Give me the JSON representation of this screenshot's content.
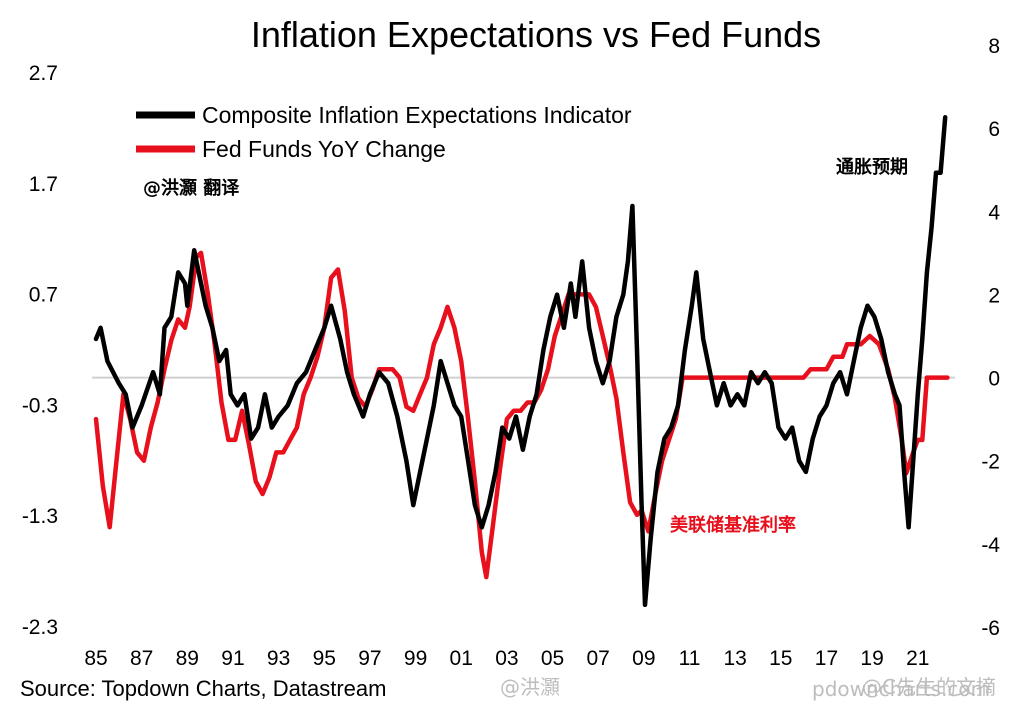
{
  "chart_data": {
    "type": "line",
    "title": "Inflation Expectations vs Fed Funds",
    "x_axis": {
      "range": [
        1985,
        2022.5
      ],
      "tick_values": [
        1985,
        1987,
        1989,
        1991,
        1993,
        1995,
        1997,
        1999,
        2001,
        2003,
        2005,
        2007,
        2009,
        2011,
        2013,
        2015,
        2017,
        2019,
        2021
      ],
      "tick_labels": [
        "85",
        "87",
        "89",
        "91",
        "93",
        "95",
        "97",
        "99",
        "01",
        "03",
        "05",
        "07",
        "09",
        "11",
        "13",
        "15",
        "17",
        "19",
        "21"
      ]
    },
    "y_left": {
      "range": [
        -2.3,
        2.7
      ],
      "ticks": [
        "2.7",
        "1.7",
        "0.7",
        "-0.3",
        "-1.3",
        "-2.3"
      ],
      "tick_values": [
        2.7,
        1.7,
        0.7,
        -0.3,
        -1.3,
        -2.3
      ]
    },
    "y_right": {
      "range": [
        -6,
        8
      ],
      "ticks": [
        "8",
        "6",
        "4",
        "2",
        "0",
        "-2",
        "-4",
        "-6"
      ],
      "tick_values": [
        8,
        6,
        4,
        2,
        0,
        -2,
        -4,
        -6
      ]
    },
    "series": [
      {
        "name": "Composite Inflation Expectations Indicator",
        "axis": "left",
        "color": "#000000",
        "points": [
          [
            1985.0,
            0.3
          ],
          [
            1985.2,
            0.4
          ],
          [
            1985.5,
            0.1
          ],
          [
            1986.0,
            -0.1
          ],
          [
            1986.3,
            -0.2
          ],
          [
            1986.6,
            -0.5
          ],
          [
            1987.0,
            -0.3
          ],
          [
            1987.5,
            0.0
          ],
          [
            1987.8,
            -0.2
          ],
          [
            1988.0,
            0.4
          ],
          [
            1988.3,
            0.5
          ],
          [
            1988.6,
            0.9
          ],
          [
            1988.9,
            0.8
          ],
          [
            1989.0,
            0.6
          ],
          [
            1989.3,
            1.1
          ],
          [
            1989.6,
            0.8
          ],
          [
            1989.8,
            0.6
          ],
          [
            1990.1,
            0.4
          ],
          [
            1990.4,
            0.1
          ],
          [
            1990.7,
            0.2
          ],
          [
            1990.9,
            -0.2
          ],
          [
            1991.2,
            -0.3
          ],
          [
            1991.5,
            -0.2
          ],
          [
            1991.8,
            -0.6
          ],
          [
            1992.1,
            -0.5
          ],
          [
            1992.4,
            -0.2
          ],
          [
            1992.7,
            -0.5
          ],
          [
            1993.0,
            -0.4
          ],
          [
            1993.4,
            -0.3
          ],
          [
            1993.8,
            -0.1
          ],
          [
            1994.2,
            0.0
          ],
          [
            1994.6,
            0.2
          ],
          [
            1995.0,
            0.4
          ],
          [
            1995.3,
            0.6
          ],
          [
            1995.7,
            0.3
          ],
          [
            1996.0,
            0.0
          ],
          [
            1996.3,
            -0.2
          ],
          [
            1996.7,
            -0.4
          ],
          [
            1997.0,
            -0.2
          ],
          [
            1997.4,
            0.0
          ],
          [
            1997.8,
            -0.1
          ],
          [
            1998.2,
            -0.4
          ],
          [
            1998.6,
            -0.8
          ],
          [
            1998.9,
            -1.2
          ],
          [
            1999.2,
            -0.9
          ],
          [
            1999.5,
            -0.6
          ],
          [
            1999.8,
            -0.3
          ],
          [
            2000.1,
            0.1
          ],
          [
            2000.4,
            -0.1
          ],
          [
            2000.7,
            -0.3
          ],
          [
            2001.0,
            -0.4
          ],
          [
            2001.3,
            -0.8
          ],
          [
            2001.6,
            -1.2
          ],
          [
            2001.9,
            -1.4
          ],
          [
            2002.2,
            -1.2
          ],
          [
            2002.5,
            -0.9
          ],
          [
            2002.8,
            -0.5
          ],
          [
            2003.1,
            -0.6
          ],
          [
            2003.4,
            -0.4
          ],
          [
            2003.7,
            -0.7
          ],
          [
            2004.0,
            -0.4
          ],
          [
            2004.3,
            -0.2
          ],
          [
            2004.6,
            0.2
          ],
          [
            2004.9,
            0.5
          ],
          [
            2005.2,
            0.7
          ],
          [
            2005.5,
            0.4
          ],
          [
            2005.8,
            0.8
          ],
          [
            2006.0,
            0.5
          ],
          [
            2006.3,
            1.0
          ],
          [
            2006.6,
            0.4
          ],
          [
            2006.9,
            0.1
          ],
          [
            2007.2,
            -0.1
          ],
          [
            2007.5,
            0.1
          ],
          [
            2007.8,
            0.5
          ],
          [
            2008.1,
            0.7
          ],
          [
            2008.3,
            1.0
          ],
          [
            2008.5,
            1.5
          ],
          [
            2008.7,
            0.2
          ],
          [
            2008.9,
            -1.2
          ],
          [
            2009.05,
            -2.1
          ],
          [
            2009.3,
            -1.5
          ],
          [
            2009.6,
            -0.9
          ],
          [
            2009.9,
            -0.6
          ],
          [
            2010.2,
            -0.5
          ],
          [
            2010.5,
            -0.3
          ],
          [
            2010.8,
            0.2
          ],
          [
            2011.1,
            0.6
          ],
          [
            2011.3,
            0.9
          ],
          [
            2011.6,
            0.3
          ],
          [
            2011.9,
            0.0
          ],
          [
            2012.2,
            -0.3
          ],
          [
            2012.5,
            -0.1
          ],
          [
            2012.8,
            -0.3
          ],
          [
            2013.1,
            -0.2
          ],
          [
            2013.4,
            -0.3
          ],
          [
            2013.7,
            0.0
          ],
          [
            2014.0,
            -0.1
          ],
          [
            2014.3,
            0.0
          ],
          [
            2014.6,
            -0.1
          ],
          [
            2014.9,
            -0.5
          ],
          [
            2015.2,
            -0.6
          ],
          [
            2015.5,
            -0.5
          ],
          [
            2015.8,
            -0.8
          ],
          [
            2016.1,
            -0.9
          ],
          [
            2016.4,
            -0.6
          ],
          [
            2016.7,
            -0.4
          ],
          [
            2017.0,
            -0.3
          ],
          [
            2017.3,
            -0.1
          ],
          [
            2017.6,
            0.0
          ],
          [
            2017.9,
            -0.2
          ],
          [
            2018.2,
            0.1
          ],
          [
            2018.5,
            0.4
          ],
          [
            2018.8,
            0.6
          ],
          [
            2019.1,
            0.5
          ],
          [
            2019.4,
            0.3
          ],
          [
            2019.7,
            0.0
          ],
          [
            2020.0,
            -0.2
          ],
          [
            2020.2,
            -0.3
          ],
          [
            2020.4,
            -0.9
          ],
          [
            2020.6,
            -1.4
          ],
          [
            2020.8,
            -0.8
          ],
          [
            2021.0,
            -0.2
          ],
          [
            2021.2,
            0.3
          ],
          [
            2021.4,
            0.9
          ],
          [
            2021.6,
            1.3
          ],
          [
            2021.8,
            1.8
          ],
          [
            2022.0,
            1.8
          ],
          [
            2022.2,
            2.3
          ]
        ]
      },
      {
        "name": "Fed Funds YoY Change",
        "axis": "right",
        "color": "#e8101c",
        "points": [
          [
            1985.0,
            -1.0
          ],
          [
            1985.3,
            -2.6
          ],
          [
            1985.6,
            -3.6
          ],
          [
            1985.9,
            -2.0
          ],
          [
            1986.2,
            -0.4
          ],
          [
            1986.5,
            -1.0
          ],
          [
            1986.8,
            -1.8
          ],
          [
            1987.1,
            -2.0
          ],
          [
            1987.4,
            -1.2
          ],
          [
            1987.7,
            -0.6
          ],
          [
            1988.0,
            0.2
          ],
          [
            1988.3,
            0.9
          ],
          [
            1988.6,
            1.4
          ],
          [
            1988.9,
            1.2
          ],
          [
            1989.1,
            1.7
          ],
          [
            1989.4,
            2.9
          ],
          [
            1989.6,
            3.0
          ],
          [
            1989.9,
            2.0
          ],
          [
            1990.2,
            0.8
          ],
          [
            1990.5,
            -0.6
          ],
          [
            1990.8,
            -1.5
          ],
          [
            1991.1,
            -1.5
          ],
          [
            1991.4,
            -0.8
          ],
          [
            1991.7,
            -1.6
          ],
          [
            1992.0,
            -2.5
          ],
          [
            1992.3,
            -2.8
          ],
          [
            1992.6,
            -2.4
          ],
          [
            1992.9,
            -1.8
          ],
          [
            1993.2,
            -1.8
          ],
          [
            1993.5,
            -1.5
          ],
          [
            1993.8,
            -1.2
          ],
          [
            1994.1,
            -0.4
          ],
          [
            1994.4,
            0.0
          ],
          [
            1994.7,
            0.5
          ],
          [
            1995.0,
            1.2
          ],
          [
            1995.3,
            2.4
          ],
          [
            1995.6,
            2.6
          ],
          [
            1995.9,
            1.6
          ],
          [
            1996.2,
            0.0
          ],
          [
            1996.5,
            -0.5
          ],
          [
            1996.8,
            -0.7
          ],
          [
            1997.1,
            -0.3
          ],
          [
            1997.4,
            0.2
          ],
          [
            1997.7,
            0.2
          ],
          [
            1998.0,
            0.2
          ],
          [
            1998.3,
            0.0
          ],
          [
            1998.6,
            -0.7
          ],
          [
            1998.9,
            -0.8
          ],
          [
            1999.2,
            -0.4
          ],
          [
            1999.5,
            0.0
          ],
          [
            1999.8,
            0.8
          ],
          [
            2000.1,
            1.2
          ],
          [
            2000.4,
            1.7
          ],
          [
            2000.7,
            1.2
          ],
          [
            2001.0,
            0.4
          ],
          [
            2001.3,
            -1.0
          ],
          [
            2001.6,
            -2.5
          ],
          [
            2001.9,
            -4.2
          ],
          [
            2002.1,
            -4.8
          ],
          [
            2002.4,
            -3.5
          ],
          [
            2002.7,
            -2.2
          ],
          [
            2003.0,
            -1.0
          ],
          [
            2003.3,
            -0.8
          ],
          [
            2003.6,
            -0.8
          ],
          [
            2003.9,
            -0.6
          ],
          [
            2004.2,
            -0.6
          ],
          [
            2004.5,
            -0.3
          ],
          [
            2004.8,
            0.2
          ],
          [
            2005.1,
            1.0
          ],
          [
            2005.4,
            1.5
          ],
          [
            2005.7,
            2.0
          ],
          [
            2006.0,
            2.0
          ],
          [
            2006.3,
            2.0
          ],
          [
            2006.6,
            2.0
          ],
          [
            2006.9,
            1.7
          ],
          [
            2007.2,
            1.0
          ],
          [
            2007.5,
            0.3
          ],
          [
            2007.8,
            -0.5
          ],
          [
            2008.1,
            -1.8
          ],
          [
            2008.4,
            -3.0
          ],
          [
            2008.7,
            -3.3
          ],
          [
            2008.9,
            -3.2
          ],
          [
            2009.2,
            -3.7
          ],
          [
            2009.5,
            -2.8
          ],
          [
            2009.8,
            -2.0
          ],
          [
            2010.1,
            -1.5
          ],
          [
            2010.4,
            -1.0
          ],
          [
            2010.7,
            0.0
          ],
          [
            2011.0,
            0.0
          ],
          [
            2013.0,
            0.0
          ],
          [
            2016.0,
            0.0
          ],
          [
            2016.3,
            0.2
          ],
          [
            2017.0,
            0.2
          ],
          [
            2017.3,
            0.5
          ],
          [
            2017.7,
            0.5
          ],
          [
            2017.9,
            0.8
          ],
          [
            2018.5,
            0.8
          ],
          [
            2018.9,
            1.0
          ],
          [
            2019.3,
            0.8
          ],
          [
            2019.7,
            0.2
          ],
          [
            2020.0,
            -0.5
          ],
          [
            2020.3,
            -1.5
          ],
          [
            2020.5,
            -2.3
          ],
          [
            2020.8,
            -1.8
          ],
          [
            2021.0,
            -1.5
          ],
          [
            2021.2,
            -1.5
          ],
          [
            2021.4,
            0.0
          ],
          [
            2022.3,
            0.0
          ]
        ]
      }
    ],
    "legend": {
      "position": "top-left",
      "entries": [
        "Composite Inflation Expectations Indicator",
        "Fed Funds YoY Change"
      ]
    },
    "annotations": [
      {
        "text": "通胀预期",
        "color": "#000000",
        "near": "top-right"
      },
      {
        "text": "美联储基准利率",
        "color": "#e8101c",
        "near": "bottom-center"
      },
      {
        "text": "@洪灝 翻译",
        "color": "#000000",
        "near": "top-left"
      }
    ],
    "grid": false
  },
  "source": "Source: Topdown Charts, Datastream",
  "watermarks": [
    "@洪灝",
    "@C先生的文摘",
    "pdowncharts.com"
  ]
}
